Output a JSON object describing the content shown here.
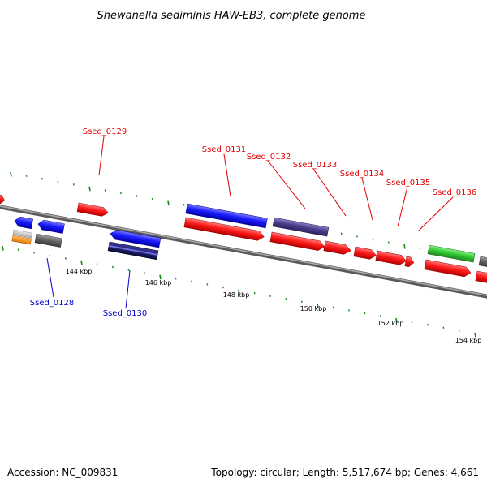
{
  "title": "Shewanella sediminis HAW-EB3, complete genome",
  "footer": {
    "accession": "Accession: NC_009831",
    "summary": "Topology: circular; Length: 5,517,674 bp; Genes: 4,661"
  },
  "colors": {
    "forward_gene": "#ff1a1a",
    "reverse_gene": "#1a1aff",
    "rna": "#4b3f8f",
    "other": "#33cc33",
    "pseudo": "#666666",
    "ticks": "#1a8a1a",
    "backbone": "#888888"
  },
  "scale_labels": [
    "144 kbp",
    "146 kbp",
    "148 kbp",
    "150 kbp",
    "152 kbp",
    "154 kbp"
  ],
  "gene_labels": [
    {
      "text": "Ssed_0128",
      "strand": "reverse"
    },
    {
      "text": "Ssed_0129",
      "strand": "forward"
    },
    {
      "text": "Ssed_0130",
      "strand": "reverse"
    },
    {
      "text": "Ssed_0131",
      "strand": "forward"
    },
    {
      "text": "Ssed_0132",
      "strand": "forward"
    },
    {
      "text": "Ssed_0133",
      "strand": "forward"
    },
    {
      "text": "Ssed_0134",
      "strand": "forward"
    },
    {
      "text": "Ssed_0135",
      "strand": "forward"
    },
    {
      "text": "Ssed_0136",
      "strand": "forward"
    }
  ]
}
